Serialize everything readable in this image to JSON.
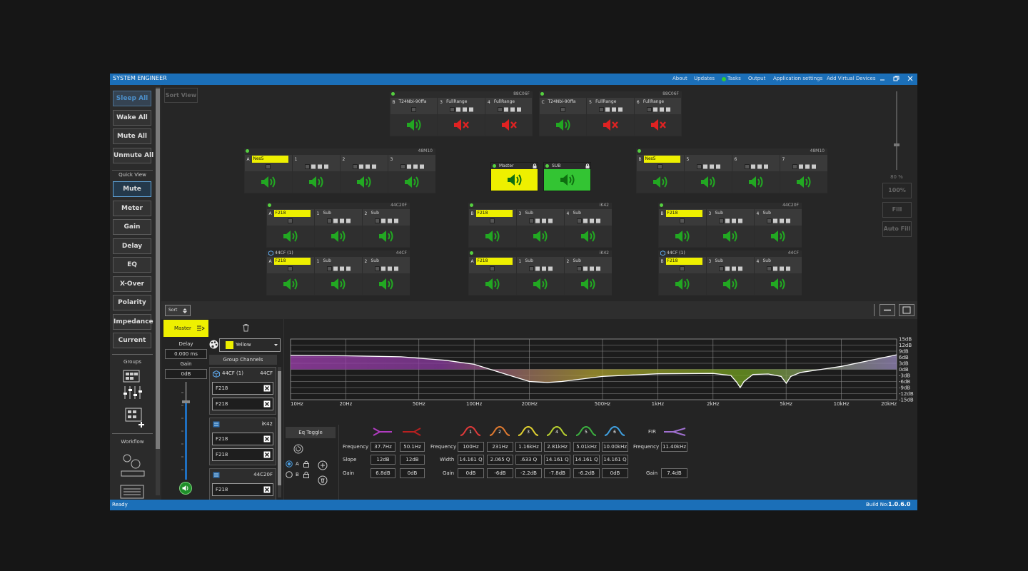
{
  "title_bar": {
    "title": "SYSTEM ENGINEER",
    "menu": [
      "About",
      "Updates",
      "Tasks",
      "Output",
      "Application settings",
      "Add Virtual Devices"
    ]
  },
  "sidebar": {
    "actions": [
      "Sleep All",
      "Wake All",
      "Mute All",
      "Unmute All"
    ],
    "quick_view_label": "Quick View",
    "quick_view": [
      "Mute",
      "Meter",
      "Gain",
      "Delay",
      "EQ",
      "X-Over",
      "Polarity",
      "Impedance",
      "Current"
    ],
    "selected_index": 0,
    "groups_label": "Groups",
    "workflow_label": "Workflow"
  },
  "sort_view": "Sort View",
  "zoom": {
    "level": "80 %",
    "buttons": [
      "100%",
      "Fill",
      "Auto Fill"
    ]
  },
  "devices": [
    {
      "id": "88C06F",
      "channels": [
        {
          "slot": "B",
          "name": "T24Nbi-90ffa",
          "muted": false
        },
        {
          "slot": "3",
          "name": "FullRange",
          "muted": true
        },
        {
          "slot": "4",
          "name": "FullRange",
          "muted": true
        }
      ]
    },
    {
      "id": "88C06F",
      "channels": [
        {
          "slot": "C",
          "name": "T24Nbi-90ffa",
          "muted": false
        },
        {
          "slot": "5",
          "name": "FullRange",
          "muted": true
        },
        {
          "slot": "6",
          "name": "FullRange",
          "muted": true
        }
      ]
    },
    {
      "id": "48M10",
      "channels": [
        {
          "slot": "A",
          "name": "Nes5",
          "highlight": true,
          "muted": false
        },
        {
          "slot": "1",
          "muted": false
        },
        {
          "slot": "2",
          "muted": false
        },
        {
          "slot": "3",
          "muted": false
        }
      ]
    },
    {
      "id": "48M10",
      "channels": [
        {
          "slot": "B",
          "name": "Nes5",
          "highlight": true,
          "muted": false
        },
        {
          "slot": "5",
          "muted": false
        },
        {
          "slot": "6",
          "muted": false
        },
        {
          "slot": "7",
          "muted": false
        }
      ]
    },
    {
      "id": "44C20F",
      "channels": [
        {
          "slot": "A",
          "name": "F218",
          "highlight": true,
          "muted": false
        },
        {
          "slot": "1",
          "name": "Sub",
          "muted": false
        },
        {
          "slot": "2",
          "name": "Sub",
          "muted": false
        }
      ]
    },
    {
      "id": "iK42",
      "channels": [
        {
          "slot": "B",
          "name": "F218",
          "highlight": true,
          "muted": false
        },
        {
          "slot": "3",
          "name": "Sub",
          "muted": false
        },
        {
          "slot": "4",
          "name": "Sub",
          "muted": false
        }
      ]
    },
    {
      "id": "44C20F",
      "channels": [
        {
          "slot": "B",
          "name": "F218",
          "highlight": true,
          "muted": false
        },
        {
          "slot": "3",
          "name": "Sub",
          "muted": false
        },
        {
          "slot": "4",
          "name": "Sub",
          "muted": false
        }
      ]
    },
    {
      "label": "44CF (1)",
      "id": "44CF",
      "channels": [
        {
          "slot": "A",
          "name": "F218",
          "highlight": true,
          "muted": false
        },
        {
          "slot": "1",
          "name": "Sub",
          "muted": false
        },
        {
          "slot": "2",
          "name": "Sub",
          "muted": false
        }
      ]
    },
    {
      "id": "iK42",
      "channels": [
        {
          "slot": "A",
          "name": "F218",
          "highlight": true,
          "muted": false
        },
        {
          "slot": "1",
          "name": "Sub",
          "muted": false
        },
        {
          "slot": "2",
          "name": "Sub",
          "muted": false
        }
      ]
    },
    {
      "label": "44CF (1)",
      "id": "44CF",
      "channels": [
        {
          "slot": "B",
          "name": "F218",
          "highlight": true,
          "muted": false
        },
        {
          "slot": "3",
          "name": "Sub",
          "muted": false
        },
        {
          "slot": "4",
          "name": "Sub",
          "muted": false
        }
      ]
    }
  ],
  "groups": [
    {
      "name": "Master",
      "color": "#eef000"
    },
    {
      "name": "SUB",
      "color": "#33c433"
    }
  ],
  "bottom": {
    "sort": "Sort",
    "group": "Master",
    "delay_label": "Delay",
    "delay": "0.000 ms",
    "gain_label": "Gain",
    "gain": "0dB",
    "color_name": "Yellow",
    "color": "#eef000",
    "group_channels_label": "Group Channels",
    "group_channels": [
      {
        "name": "44CF (1)",
        "id": "44CF",
        "channels": [
          "F218",
          "F218"
        ]
      },
      {
        "id": "iK42",
        "channels": [
          "F218",
          "F218"
        ]
      },
      {
        "id": "44C20F",
        "channels": [
          "F218"
        ]
      }
    ]
  },
  "eq_graph": {
    "xlim": [
      10,
      20000
    ],
    "ylim": [
      -15,
      15
    ],
    "log_x": true,
    "xticks": [
      {
        "value": 10,
        "label": "10Hz"
      },
      {
        "value": 20,
        "label": "20Hz"
      },
      {
        "value": 50,
        "label": "50Hz"
      },
      {
        "value": 100,
        "label": "100Hz"
      },
      {
        "value": 200,
        "label": "200Hz"
      },
      {
        "value": 500,
        "label": "500Hz"
      },
      {
        "value": 1000,
        "label": "1kHz"
      },
      {
        "value": 2000,
        "label": "2kHz"
      },
      {
        "value": 5000,
        "label": "5kHz"
      },
      {
        "value": 10000,
        "label": "10kHz"
      },
      {
        "value": 20000,
        "label": "20kHz"
      }
    ],
    "yticks": [
      {
        "value": 15,
        "label": "15dB"
      },
      {
        "value": 12,
        "label": "12dB"
      },
      {
        "value": 9,
        "label": "9dB"
      },
      {
        "value": 6,
        "label": "6dB"
      },
      {
        "value": 3,
        "label": "3dB"
      },
      {
        "value": 0,
        "label": "0dB"
      },
      {
        "value": -3,
        "label": "-3dB"
      },
      {
        "value": -6,
        "label": "-6dB"
      },
      {
        "value": -9,
        "label": "-9dB"
      },
      {
        "value": -12,
        "label": "-12dB"
      },
      {
        "value": -15,
        "label": "-15dB"
      }
    ],
    "x": [
      10,
      20,
      40,
      70,
      100,
      150,
      200,
      250,
      300,
      500,
      1000,
      2000,
      2500,
      2700,
      2810,
      2950,
      3300,
      4000,
      4700,
      5010,
      5300,
      6000,
      10000,
      20000
    ],
    "y": [
      6.9,
      6.7,
      6.2,
      4.5,
      2.5,
      -2.5,
      -6,
      -6.5,
      -6,
      -3.5,
      -2.2,
      -2,
      -3,
      -6.5,
      -9,
      -6,
      -2.5,
      -2.3,
      -3.5,
      -6.9,
      -3.5,
      -1.5,
      1.5,
      7.2
    ],
    "line_color": "#ffffff"
  },
  "eq": {
    "toggle": "Eq Toggle",
    "presets": [
      "A",
      "B"
    ],
    "selected_preset": 0,
    "filter_row_labels": [
      "Frequency",
      "Slope",
      "Gain"
    ],
    "filters": [
      {
        "frequency": "37.7Hz",
        "slope": "12dB",
        "gain": "6.8dB",
        "color": "#b03cc0"
      },
      {
        "frequency": "50.1Hz",
        "slope": "12dB",
        "gain": "0dB",
        "color": "#b82020"
      }
    ],
    "band_row_labels": [
      "Frequency",
      "Width",
      "Gain"
    ],
    "bands": [
      {
        "label": "1",
        "frequency": "100Hz",
        "width": "14.161 Q",
        "gain": "0dB",
        "color": "#e03a3a"
      },
      {
        "label": "2",
        "frequency": "231Hz",
        "width": "2.065 Q",
        "gain": "-6dB",
        "color": "#e07a30"
      },
      {
        "label": "3",
        "frequency": "1.16kHz",
        "width": ".633 Q",
        "gain": "-2.2dB",
        "color": "#e0d030"
      },
      {
        "label": "4",
        "frequency": "2.81kHz",
        "width": "14.161 Q",
        "gain": "-7.8dB",
        "color": "#b8d030"
      },
      {
        "label": "5",
        "frequency": "5.01kHz",
        "width": "14.161 Q",
        "gain": "-6.2dB",
        "color": "#3cb040"
      },
      {
        "label": "6",
        "frequency": "10.00kHz",
        "width": "14.161 Q",
        "gain": "0dB",
        "color": "#40a0e0"
      }
    ],
    "fir": {
      "label": "FIR",
      "frequency_label": "Frequency",
      "frequency": "11.40kHz",
      "gain_label": "Gain",
      "gain": "7.4dB",
      "color": "#a070d0"
    }
  },
  "status": {
    "text": "Ready",
    "build_label": "Build No:",
    "build": "1.0.6.0"
  }
}
